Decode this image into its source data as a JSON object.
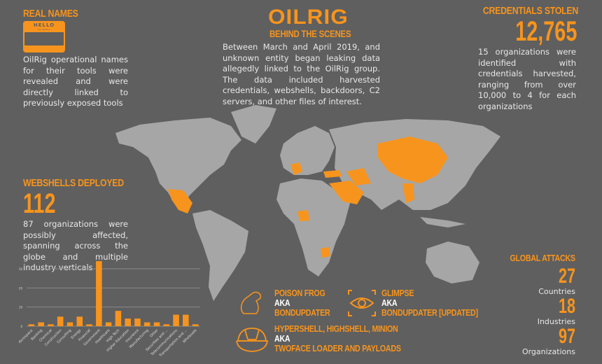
{
  "real_names": {
    "title": "REAL NAMES",
    "badge_text": "HELLO",
    "badge_subtext": "my name is",
    "description": "OilRig operational names for their tools were revealed and were directly linked to previously exposed tools"
  },
  "header": {
    "logo": "OILRIG",
    "subtitle": "BEHIND THE SCENES",
    "description": "Between March and April 2019, and unknown entity began leaking data allegedly linked to the OilRig group. The data included harvested credentials, webshells, backdoors, C2 servers, and other files of interest."
  },
  "credentials": {
    "title": "CREDENTIALS STOLEN",
    "value": "12,765",
    "description": "15 organizations were identified with credentials harvested, ranging from over 10,000 to 4 for each organizations"
  },
  "webshells": {
    "title": "WEBSHELLS DEPLOYED",
    "value": "112",
    "description": "87 organizations were possibly affected, spanning across the globe and multiple industry verticals"
  },
  "global_attacks": {
    "title": "GLOBAL ATTACKS",
    "stats": [
      {
        "value": "27",
        "label": "Countries"
      },
      {
        "value": "18",
        "label": "Industries"
      },
      {
        "value": "97",
        "label": "Organizations"
      }
    ]
  },
  "tools": [
    {
      "icon": "frog-icon",
      "name": "POISON FROG",
      "aka": "AKA",
      "alias": "BONDUPDATER"
    },
    {
      "icon": "eye-icon",
      "name": "GLIMPSE",
      "aka": "AKA",
      "alias": "BONDUPDATER [UPDATED]"
    },
    {
      "icon": "turtle-shell-icon",
      "name": "HYPERSHELL, HIGHSHELL, MINION",
      "aka": "AKA",
      "alias": "TWOFACE LOADER AND PAYLOADS"
    }
  ],
  "colors": {
    "accent": "#f7941d",
    "background": "#5f5f5f",
    "map_land": "#a6a6a6"
  },
  "chart_data": {
    "type": "bar",
    "categories": [
      "Aerospace",
      "Banking",
      "Chemical",
      "Construction",
      "Consulting",
      "Energy",
      "Financial",
      "Government",
      "Healthcare",
      "High Tech",
      "Higher Education",
      "Insurance",
      "Manufacturing",
      "Other",
      "Securities and ...",
      "Telecommunications",
      "Transportation and ...",
      "Wholesale"
    ],
    "values": [
      1,
      2,
      1,
      5,
      2,
      5,
      1,
      34,
      2,
      8,
      4,
      4,
      2,
      2,
      1,
      6,
      6,
      1
    ],
    "yticks": [
      "0",
      "10",
      "20",
      "30"
    ],
    "ylim": [
      0,
      34
    ],
    "grid": true
  }
}
